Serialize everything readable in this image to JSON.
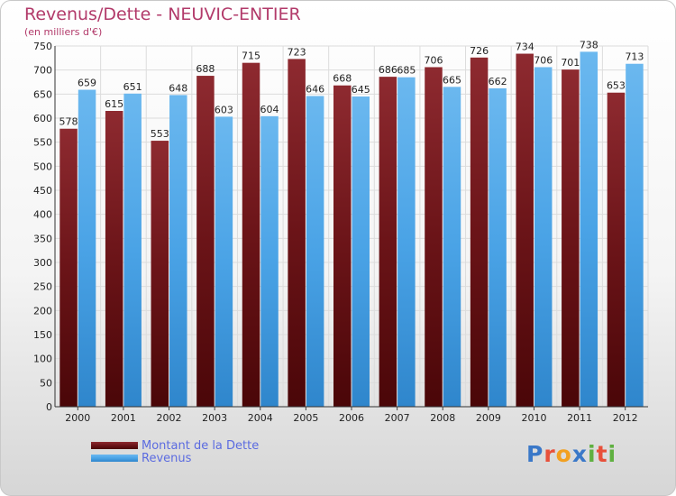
{
  "header": {
    "title": "Revenus/Dette - NEUVIC-ENTIER",
    "subtitle": "(en milliers d'€)"
  },
  "colors": {
    "dette": "#6b1418",
    "revenus": "#4aa3e6",
    "title": "#b23a6a",
    "legend_text": "#5b6be0"
  },
  "chart_data": {
    "type": "bar",
    "categories": [
      "2000",
      "2001",
      "2002",
      "2003",
      "2004",
      "2005",
      "2006",
      "2007",
      "2008",
      "2009",
      "2010",
      "2011",
      "2012"
    ],
    "series": [
      {
        "name": "Montant de la Dette",
        "values": [
          578,
          615,
          553,
          688,
          715,
          723,
          668,
          686,
          706,
          726,
          734,
          701,
          653
        ]
      },
      {
        "name": "Revenus",
        "values": [
          659,
          651,
          648,
          603,
          604,
          646,
          645,
          685,
          665,
          662,
          706,
          738,
          713
        ]
      }
    ],
    "yticks": [
      0,
      50,
      100,
      150,
      200,
      250,
      300,
      350,
      400,
      450,
      500,
      550,
      600,
      650,
      700,
      750
    ],
    "ylim": [
      0,
      750
    ],
    "grid": true,
    "legend": "bottom-left"
  },
  "legend": {
    "items": [
      {
        "label": "Montant de la Dette"
      },
      {
        "label": "Revenus"
      }
    ]
  },
  "branding": {
    "logo_letters": [
      "P",
      "r",
      "o",
      "x",
      "i",
      "t",
      "i"
    ],
    "logo_colors": [
      "#3a78c8",
      "#e8503a",
      "#f2a020",
      "#3a78c8",
      "#5fb040",
      "#e8503a",
      "#5fb040"
    ]
  }
}
